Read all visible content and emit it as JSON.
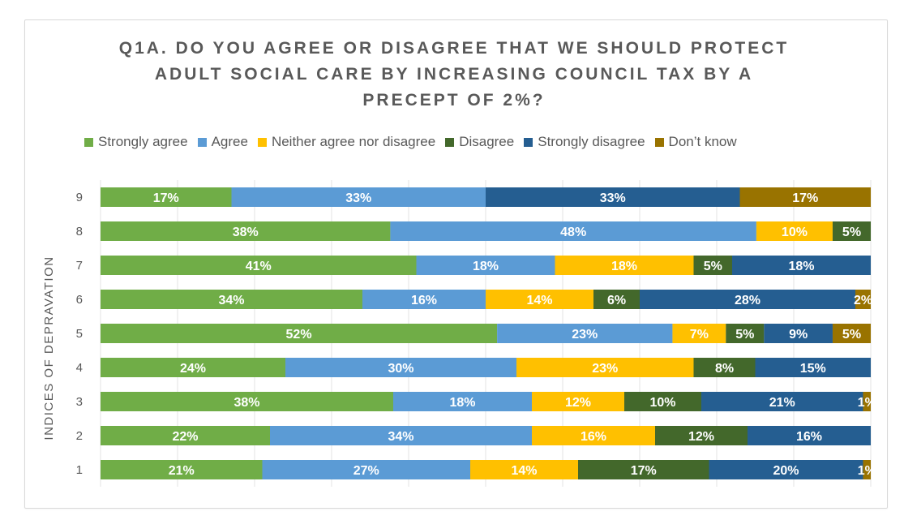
{
  "chart_data": {
    "type": "bar",
    "orientation": "horizontal",
    "stacked": "100%",
    "title_lines": [
      "Q1A. DO YOU AGREE OR DISAGREE THAT WE SHOULD PROTECT",
      "ADULT SOCIAL CARE BY INCREASING COUNCIL TAX BY A",
      "PRECEPT OF 2%?"
    ],
    "ylabel": "INDICES OF DEPRAVATION",
    "xlabel": "",
    "legend_position": "top",
    "grid": "vertical",
    "categories": [
      "9",
      "8",
      "7",
      "6",
      "5",
      "4",
      "3",
      "2",
      "1"
    ],
    "series": [
      {
        "name": "Strongly agree",
        "color": "#70ad47",
        "values": [
          17,
          38,
          41,
          34,
          52,
          24,
          38,
          22,
          21
        ],
        "labels": [
          "17%",
          "38%",
          "41%",
          "34%",
          "52%",
          "24%",
          "38%",
          "22%",
          "21%"
        ]
      },
      {
        "name": "Agree",
        "color": "#5b9bd5",
        "values": [
          33,
          48,
          18,
          16,
          23,
          30,
          18,
          34,
          27
        ],
        "labels": [
          "33%",
          "48%",
          "18%",
          "16%",
          "23%",
          "30%",
          "18%",
          "34%",
          "27%"
        ]
      },
      {
        "name": "Neither agree nor disagree",
        "color": "#ffc000",
        "values": [
          0,
          10,
          18,
          14,
          7,
          23,
          12,
          16,
          14
        ],
        "labels": [
          "",
          "10%",
          "18%",
          "14%",
          "7%",
          "23%",
          "12%",
          "16%",
          "14%"
        ]
      },
      {
        "name": "Disagree",
        "color": "#43682b",
        "values": [
          0,
          5,
          5,
          6,
          5,
          8,
          10,
          12,
          17
        ],
        "labels": [
          "",
          "5%",
          "5%",
          "6%",
          "5%",
          "8%",
          "10%",
          "12%",
          "17%"
        ]
      },
      {
        "name": "Strongly disagree",
        "color": "#255e91",
        "values": [
          33,
          0,
          18,
          28,
          9,
          15,
          21,
          16,
          20
        ],
        "labels": [
          "33%",
          "",
          "18%",
          "28%",
          "9%",
          "15%",
          "21%",
          "16%",
          "20%"
        ]
      },
      {
        "name": "Don’t know",
        "color": "#997300",
        "values": [
          17,
          0,
          0,
          2,
          5,
          0,
          1,
          0,
          1
        ],
        "labels": [
          "17%",
          "",
          "",
          "2%",
          "5%",
          "",
          "1%",
          "",
          "1%"
        ]
      }
    ]
  }
}
